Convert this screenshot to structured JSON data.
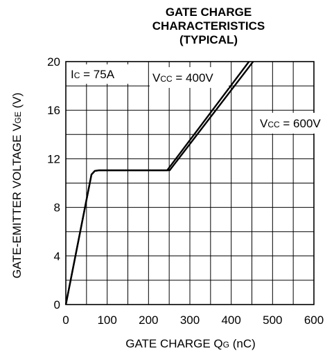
{
  "chart_data": {
    "type": "line",
    "title_lines": [
      "GATE CHARGE",
      "CHARACTERISTICS",
      "(TYPICAL)"
    ],
    "xlabel": {
      "main": "GATE CHARGE  Q",
      "sub": "G",
      "unit": " (nC)"
    },
    "ylabel": {
      "main": "GATE-EMITTER VOLTAGE  V",
      "sub": "GE",
      "unit": " (V)"
    },
    "xlim": [
      0,
      600
    ],
    "ylim": [
      0,
      20
    ],
    "xticks": [
      "0",
      "100",
      "200",
      "300",
      "400",
      "500",
      "600"
    ],
    "yticks": [
      "0",
      "4",
      "8",
      "12",
      "16",
      "20"
    ],
    "xtick_values": [
      0,
      100,
      200,
      300,
      400,
      500,
      600
    ],
    "ytick_values": [
      0,
      4,
      8,
      12,
      16,
      20
    ],
    "grid": true,
    "condition": {
      "main": "I",
      "sub": "C",
      "rest": " = 75A"
    },
    "series": [
      {
        "label_main": "V",
        "label_sub": "CC",
        "label_rest": " = 400V",
        "x": [
          0,
          62,
          70,
          80,
          100,
          245,
          443
        ],
        "y": [
          0,
          10.7,
          11.0,
          11.05,
          11.05,
          11.05,
          20.0
        ]
      },
      {
        "label_main": "V",
        "label_sub": "CC",
        "label_rest": " = 600V",
        "x": [
          0,
          62,
          70,
          80,
          100,
          251,
          453
        ],
        "y": [
          0,
          10.7,
          11.0,
          11.05,
          11.05,
          11.05,
          20.0
        ]
      }
    ]
  }
}
